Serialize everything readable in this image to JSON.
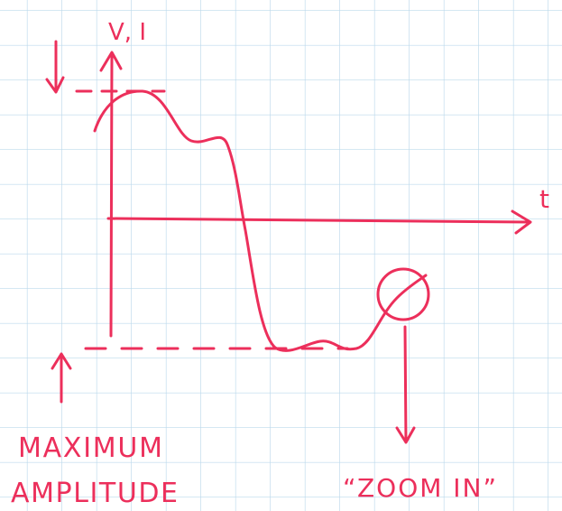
{
  "axes": {
    "y_label": "V, I",
    "x_label": "t"
  },
  "annotations": {
    "max_amplitude": {
      "line1": "MAXIMUM",
      "line2": "AMPLITUDE"
    },
    "zoom_in": "“ZOOM IN”"
  }
}
